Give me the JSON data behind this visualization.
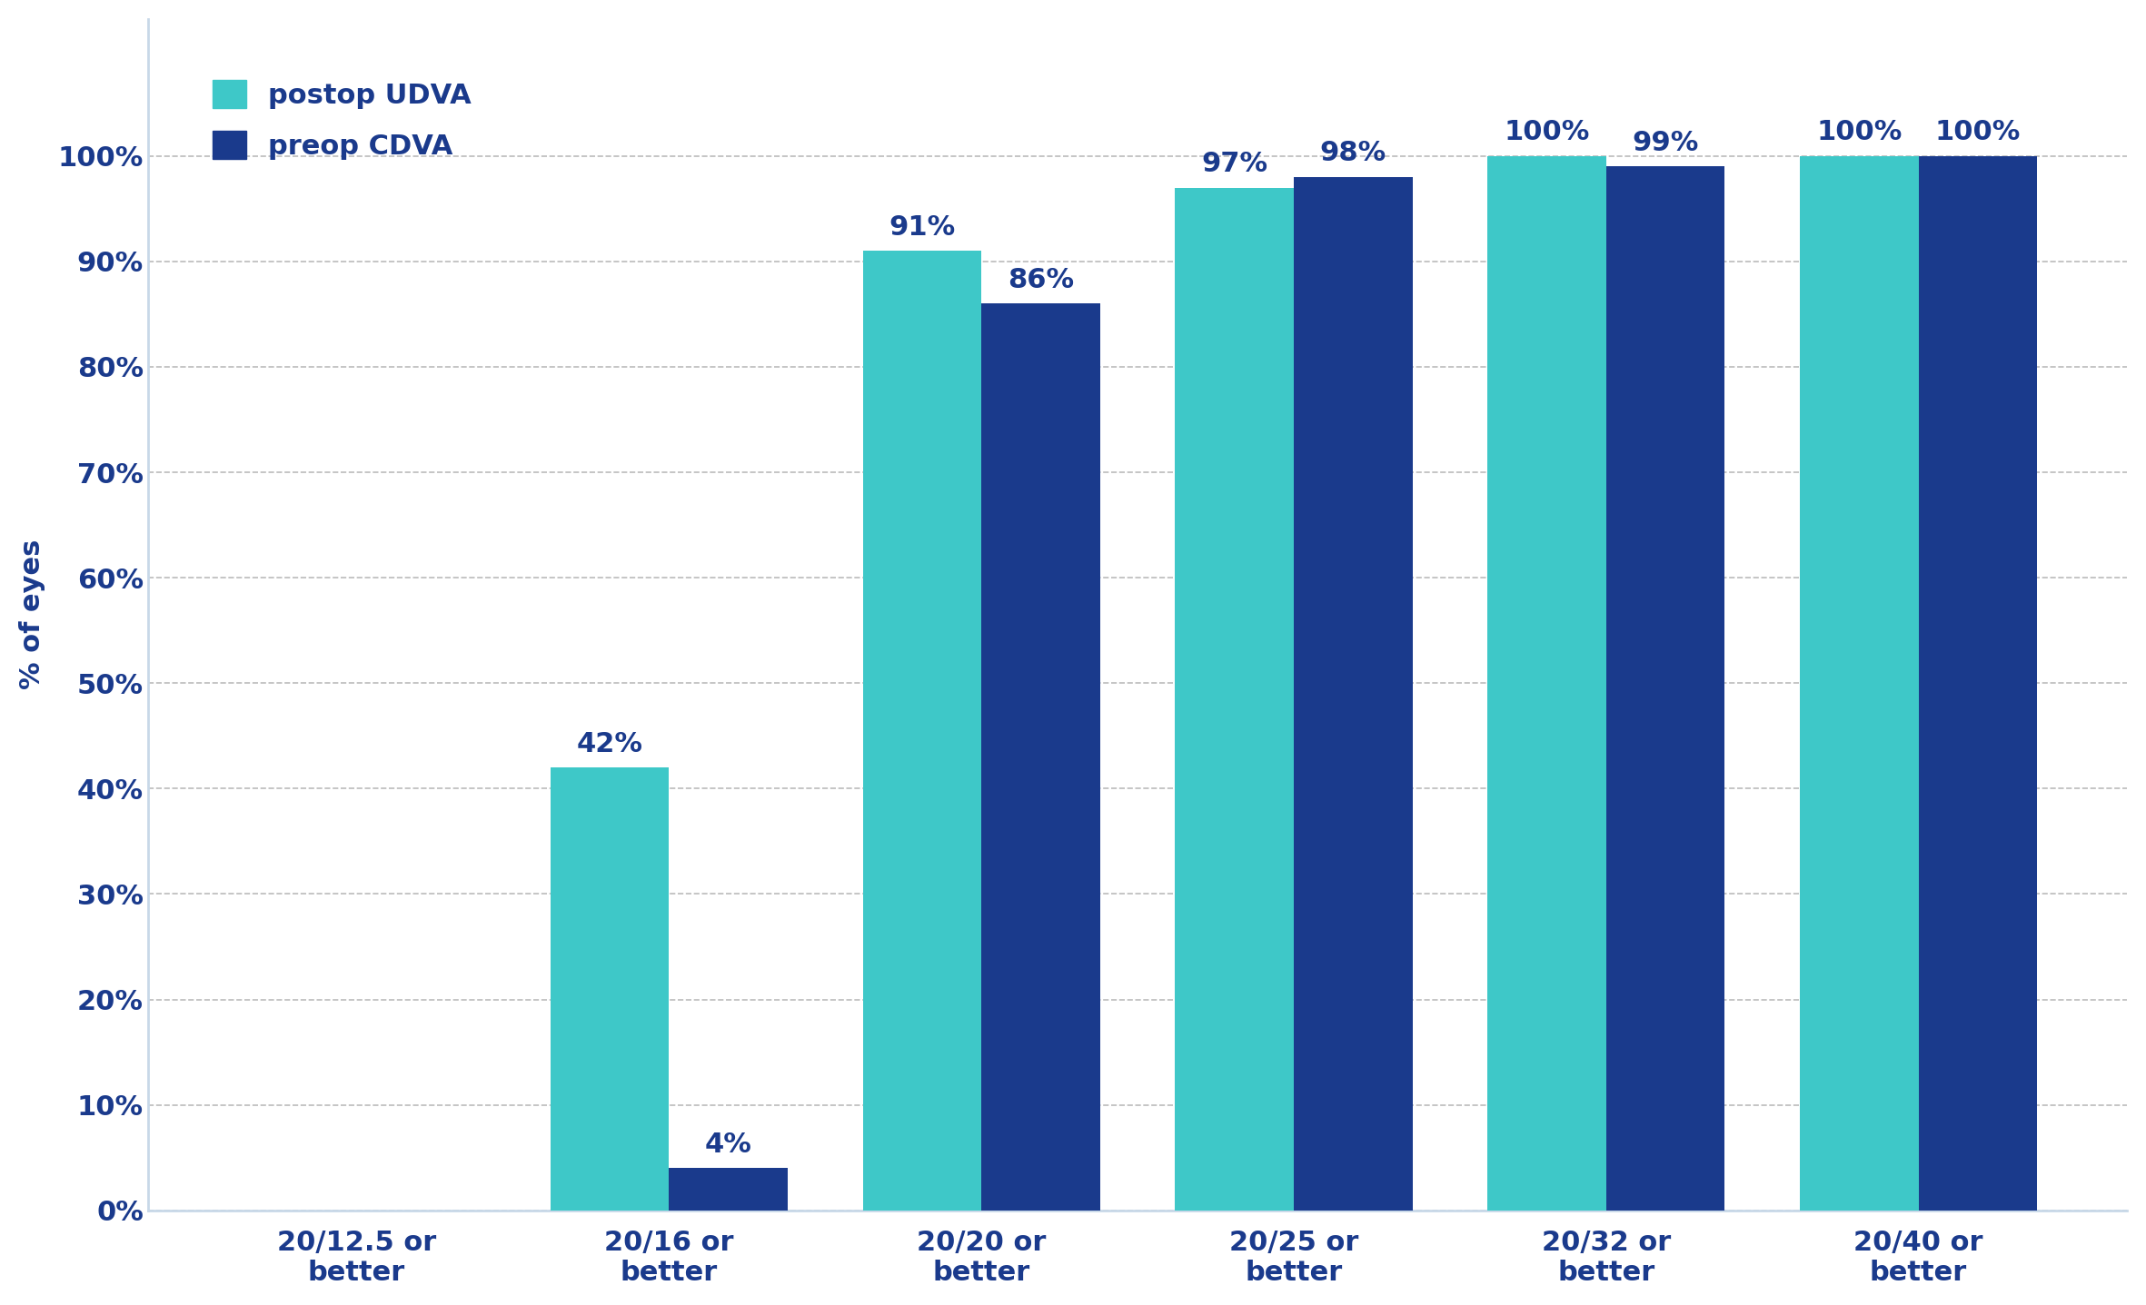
{
  "categories": [
    "20/12.5 or\nbetter",
    "20/16 or\nbetter",
    "20/20 or\nbetter",
    "20/25 or\nbetter",
    "20/32 or\nbetter",
    "20/40 or\nbetter"
  ],
  "postop_UDVA": [
    0,
    42,
    91,
    97,
    100,
    100
  ],
  "preop_CDVA": [
    0,
    4,
    86,
    98,
    99,
    100
  ],
  "postop_labels": [
    "",
    "42%",
    "91%",
    "97%",
    "100%",
    "100%"
  ],
  "preop_labels": [
    "",
    "4%",
    "86%",
    "98%",
    "99%",
    "100%"
  ],
  "color_postop": "#3EC8C8",
  "color_preop": "#1A3A8C",
  "ylabel": "% of eyes",
  "ylim": [
    0,
    113
  ],
  "yticks": [
    0,
    10,
    20,
    30,
    40,
    50,
    60,
    70,
    80,
    90,
    100
  ],
  "ytick_labels": [
    "0%",
    "10%",
    "20%",
    "30%",
    "40%",
    "50%",
    "60%",
    "70%",
    "80%",
    "90%",
    "100%"
  ],
  "legend_postop": "postop UDVA",
  "legend_preop": "preop CDVA",
  "bar_width": 0.38,
  "background_color": "#ffffff",
  "grid_color": "#bbbbbb",
  "text_color": "#1A3A8C",
  "spine_color": "#c8d8e8",
  "label_fontsize": 22,
  "tick_fontsize": 22,
  "legend_fontsize": 22,
  "bar_label_fontsize": 22
}
